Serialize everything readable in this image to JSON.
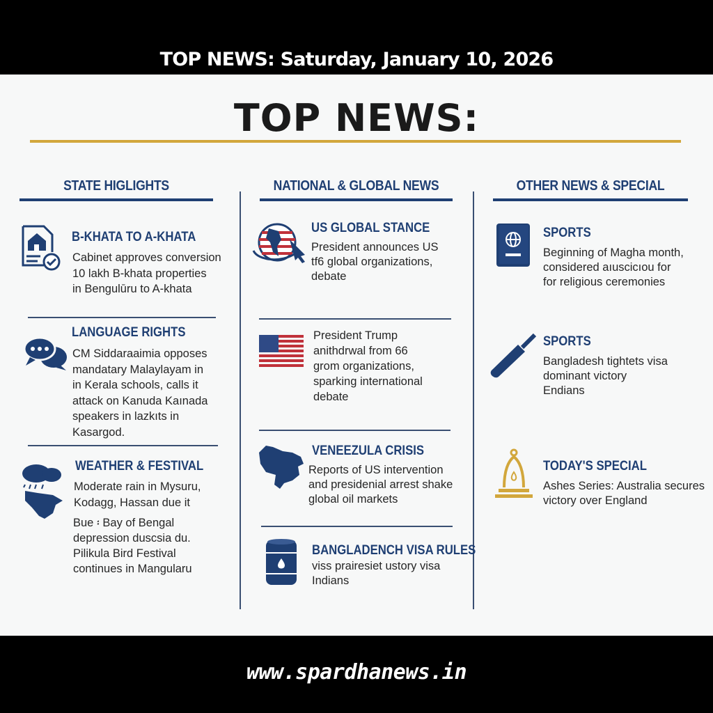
{
  "header": {
    "date_title": "TOP NEWS: Saturday, January 10, 2026",
    "main_title": "TOP NEWS:"
  },
  "colors": {
    "navy": "#1f3f73",
    "gold": "#d2a73c",
    "bar": "#000000"
  },
  "columns": [
    {
      "title": "STATE HIGLIGHTS",
      "items": [
        {
          "icon": "document-house-check-icon",
          "heading": "B-KHATA TO A-KHATA",
          "body": "Cabinet approves conversion\n10 lakh B-khata properties\nin Bengulūru to A-khata"
        },
        {
          "icon": "speech-bubbles-icon",
          "heading": "LANGUAGE RIGHTS",
          "body": "CM Siddaraaimia opposes\nmandatary Malaylayam in\nin Kerala schools, calls it\nattack on Kanuda Kaınada\nspeakers in lazkıts in\nKasargod."
        },
        {
          "icon": "rain-cloud-map-icon",
          "heading": "WEATHER & FESTIVAL",
          "body": "Moderate rain in Mysuru,\nKodagg, Hassan due it",
          "body2": "Bue ፡ Bay of Bengal\ndepression duscsia du.\nPilikula Bird Festival\ncontinues in Mangularu"
        }
      ]
    },
    {
      "title": "NATIONAL & GLOBAL NEWS",
      "items": [
        {
          "icon": "globe-flag-cursor-icon",
          "heading": "US GLOBAL STANCE",
          "body": "President announces US\ntf6  global organizations,\ndebate"
        },
        {
          "icon": "us-flag-icon",
          "heading": "",
          "body": "President Trump\nanithdrwal from 66\ngrom organizations,\nsparking international\ndebate"
        },
        {
          "icon": "venezuela-map-icon",
          "heading": "VENEEZULA CRISIS",
          "body": "Reports of US intervention\nand presidenial arrest shake\nglobal oil markets"
        },
        {
          "icon": "oil-barrel-icon",
          "heading": "BANGLADENCH VISA RULES",
          "body": "viss prairesiet ustory visa\nIndians"
        }
      ]
    },
    {
      "title": "OTHER NEWS & SPECIAL",
      "items": [
        {
          "icon": "passport-icon",
          "heading": "SPORTS",
          "body": "Beginning of Magha month,\nconsidered aıuscicıou for\nfor religious ceremonies"
        },
        {
          "icon": "cricket-bat-icon",
          "heading": "SPORTS",
          "body": "Bangladesh tightets visa\ndominant victory\nEndians"
        },
        {
          "icon": "lamp-icon",
          "heading": "TODAY'S SPECIAL",
          "body": "Ashes Series: Australia secures\nvictory over England"
        }
      ]
    }
  ],
  "footer": {
    "url": "www.spardhanews.in"
  }
}
